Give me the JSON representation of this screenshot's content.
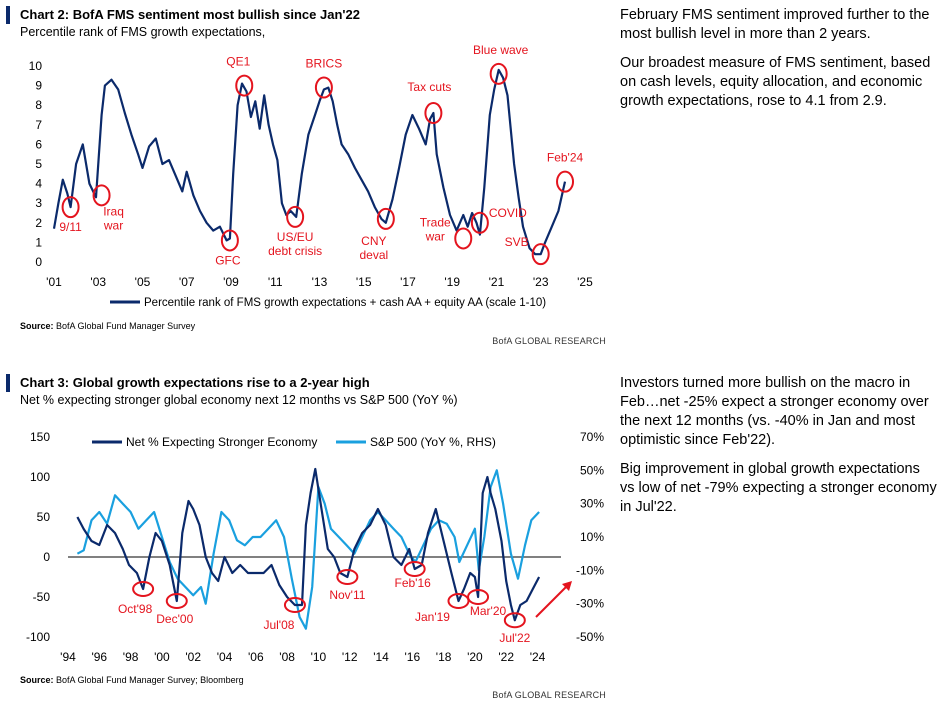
{
  "chart2": {
    "heading": "Chart 2: BofA FMS sentiment most bullish since Jan'22",
    "subtitle": "Percentile rank of FMS growth expectations,",
    "source_label": "Source:",
    "source_text": "BofA Global Fund Manager Survey",
    "brand": "BofA GLOBAL RESEARCH",
    "commentary": [
      "February FMS sentiment improved further to the most bullish level in more than 2 years.",
      "Our broadest measure of FMS sentiment, based on cash levels, equity allocation, and economic growth expectations, rose to 4.1 from 2.9."
    ]
  },
  "chart3": {
    "heading": "Chart 3: Global growth expectations rise to a 2-year high",
    "subtitle": "Net % expecting stronger global economy next 12 months vs S&P 500 (YoY %)",
    "source_label": "Source:",
    "source_text": "BofA Global Fund Manager Survey; Bloomberg",
    "brand": "BofA GLOBAL RESEARCH",
    "commentary": [
      "Investors turned more bullish on the macro in Feb…net -25% expect a stronger economy over the next 12 months (vs. -40% in Jan and most optimistic since Feb'22).",
      "Big improvement in global growth expectations vs low of net -79% expecting a stronger economy in Jul'22."
    ]
  },
  "chart_data": [
    {
      "type": "line",
      "title": "Chart 2: BofA FMS sentiment most bullish since Jan'22",
      "subtitle": "Percentile rank of FMS growth expectations,",
      "xlim": [
        2001,
        2025.5
      ],
      "ylim": [
        0,
        10
      ],
      "x_ticks": [
        "'01",
        "'03",
        "'05",
        "'07",
        "'09",
        "'11",
        "'13",
        "'15",
        "'17",
        "'19",
        "'21",
        "'23",
        "'25"
      ],
      "x_tick_values": [
        2001,
        2003,
        2005,
        2007,
        2009,
        2011,
        2013,
        2015,
        2017,
        2019,
        2021,
        2023,
        2025
      ],
      "y_ticks": [
        0,
        1,
        2,
        3,
        4,
        5,
        6,
        7,
        8,
        9,
        10
      ],
      "legend": "bottom",
      "series": [
        {
          "name": "Percentile rank of FMS growth expectations + cash AA + equity AA (scale 1-10)",
          "color": "#0b2a6b",
          "x": [
            2001.0,
            2001.2,
            2001.4,
            2001.6,
            2001.75,
            2002.0,
            2002.3,
            2002.6,
            2002.9,
            2003.15,
            2003.3,
            2003.6,
            2003.9,
            2004.2,
            2004.5,
            2004.8,
            2005.0,
            2005.3,
            2005.6,
            2005.9,
            2006.2,
            2006.5,
            2006.8,
            2007.0,
            2007.3,
            2007.6,
            2007.9,
            2008.2,
            2008.5,
            2008.8,
            2008.95,
            2009.1,
            2009.3,
            2009.5,
            2009.7,
            2009.9,
            2010.1,
            2010.3,
            2010.5,
            2010.7,
            2010.9,
            2011.1,
            2011.3,
            2011.5,
            2011.7,
            2011.95,
            2012.2,
            2012.5,
            2012.8,
            2013.0,
            2013.2,
            2013.4,
            2013.6,
            2013.8,
            2014.0,
            2014.3,
            2014.6,
            2014.9,
            2015.2,
            2015.5,
            2015.8,
            2016.0,
            2016.3,
            2016.6,
            2016.9,
            2017.2,
            2017.5,
            2017.8,
            2018.0,
            2018.15,
            2018.3,
            2018.6,
            2018.9,
            2019.2,
            2019.5,
            2019.7,
            2019.9,
            2020.1,
            2020.25,
            2020.45,
            2020.7,
            2020.9,
            2021.1,
            2021.3,
            2021.5,
            2021.8,
            2022.0,
            2022.2,
            2022.5,
            2022.75,
            2023.0,
            2023.2,
            2023.5,
            2023.8,
            2024.0,
            2024.1
          ],
          "y": [
            1.7,
            3.0,
            4.2,
            3.5,
            2.8,
            5.0,
            6.0,
            4.0,
            3.3,
            7.5,
            9.0,
            9.3,
            8.8,
            7.6,
            6.5,
            5.5,
            4.8,
            5.9,
            6.3,
            5.0,
            5.2,
            4.4,
            3.6,
            4.6,
            3.4,
            2.6,
            2.0,
            1.6,
            1.8,
            1.1,
            1.2,
            4.5,
            8.0,
            9.1,
            8.7,
            7.4,
            8.2,
            6.8,
            8.5,
            7.0,
            6.0,
            5.2,
            3.0,
            2.4,
            2.6,
            2.3,
            4.5,
            6.5,
            7.5,
            8.2,
            8.8,
            8.9,
            8.2,
            7.0,
            6.0,
            5.5,
            4.8,
            4.2,
            3.6,
            2.8,
            2.2,
            2.0,
            3.2,
            4.8,
            6.5,
            7.5,
            6.8,
            6.0,
            7.3,
            7.6,
            5.5,
            3.8,
            2.4,
            1.6,
            2.4,
            1.8,
            2.5,
            2.0,
            1.4,
            3.8,
            7.5,
            8.8,
            9.8,
            9.4,
            8.5,
            5.0,
            3.3,
            1.8,
            0.7,
            0.4,
            0.4,
            1.0,
            1.8,
            2.6,
            3.6,
            4.1
          ]
        }
      ],
      "annotations": [
        {
          "label": "9/11",
          "x": 2001.75,
          "y": 2.8
        },
        {
          "label": "Iraq war",
          "x": 2003.15,
          "y": 3.4
        },
        {
          "label": "GFC",
          "x": 2008.95,
          "y": 1.1
        },
        {
          "label": "QE1",
          "x": 2009.6,
          "y": 9.0
        },
        {
          "label": "US/EU debt crisis",
          "x": 2011.9,
          "y": 2.3
        },
        {
          "label": "BRICS",
          "x": 2013.2,
          "y": 8.9
        },
        {
          "label": "CNY deval",
          "x": 2016.0,
          "y": 2.2
        },
        {
          "label": "Tax cuts",
          "x": 2018.15,
          "y": 7.6
        },
        {
          "label": "Trade war",
          "x": 2019.5,
          "y": 1.2
        },
        {
          "label": "COVID",
          "x": 2020.25,
          "y": 2.0
        },
        {
          "label": "Blue wave",
          "x": 2021.1,
          "y": 9.6
        },
        {
          "label": "SVB",
          "x": 2023.0,
          "y": 0.4
        },
        {
          "label": "Feb'24",
          "x": 2024.1,
          "y": 4.1
        }
      ]
    },
    {
      "type": "line",
      "title": "Chart 3: Global growth expectations rise to a 2-year high",
      "subtitle": "Net % expecting stronger global economy next 12 months vs S&P 500 (YoY %)",
      "xlim": [
        1994,
        2025.5
      ],
      "ylim": [
        -100,
        150
      ],
      "y2lim": [
        -50,
        70
      ],
      "x_ticks": [
        "'94",
        "'96",
        "'98",
        "'00",
        "'02",
        "'04",
        "'06",
        "'08",
        "'10",
        "'12",
        "'14",
        "'16",
        "'18",
        "'20",
        "'22",
        "'24"
      ],
      "x_tick_values": [
        1994,
        1996,
        1998,
        2000,
        2002,
        2004,
        2006,
        2008,
        2010,
        2012,
        2014,
        2016,
        2018,
        2020,
        2022,
        2024
      ],
      "y_ticks": [
        -100,
        -50,
        0,
        50,
        100,
        150
      ],
      "y2_ticks": [
        "-50%",
        "-30%",
        "-10%",
        "10%",
        "30%",
        "50%",
        "70%"
      ],
      "y2_tick_values": [
        -50,
        -30,
        -10,
        10,
        30,
        50,
        70
      ],
      "legend": "top",
      "series": [
        {
          "name": "Net % Expecting Stronger Economy",
          "axis": "left",
          "color": "#0b2a6b",
          "x": [
            1994.6,
            1995.0,
            1995.5,
            1996.0,
            1996.5,
            1997.0,
            1997.5,
            1997.9,
            1998.4,
            1998.8,
            1999.2,
            1999.6,
            2000.0,
            2000.5,
            2000.95,
            2001.3,
            2001.7,
            2002.0,
            2002.4,
            2002.8,
            2003.2,
            2003.6,
            2004.0,
            2004.5,
            2005.0,
            2005.5,
            2006.0,
            2006.5,
            2007.0,
            2007.5,
            2008.0,
            2008.5,
            2008.95,
            2009.2,
            2009.5,
            2009.8,
            2010.2,
            2010.6,
            2011.0,
            2011.4,
            2011.85,
            2012.3,
            2012.8,
            2013.3,
            2013.8,
            2014.3,
            2014.8,
            2015.3,
            2015.8,
            2016.15,
            2016.6,
            2017.0,
            2017.5,
            2018.0,
            2018.5,
            2018.95,
            2019.3,
            2019.7,
            2020.0,
            2020.2,
            2020.5,
            2020.8,
            2021.0,
            2021.3,
            2021.7,
            2022.0,
            2022.3,
            2022.55,
            2022.9,
            2023.3,
            2023.7,
            2024.1
          ],
          "y": [
            50,
            35,
            20,
            15,
            40,
            30,
            10,
            -10,
            -20,
            -40,
            0,
            30,
            20,
            -10,
            -55,
            30,
            70,
            60,
            40,
            0,
            -20,
            -30,
            0,
            -20,
            -10,
            -20,
            -20,
            -20,
            -10,
            -35,
            -50,
            -60,
            -60,
            40,
            80,
            110,
            60,
            10,
            0,
            -20,
            -25,
            10,
            30,
            40,
            60,
            40,
            0,
            -10,
            10,
            -15,
            -10,
            30,
            60,
            20,
            -20,
            -55,
            -40,
            -20,
            -25,
            -50,
            80,
            100,
            80,
            60,
            20,
            -30,
            -60,
            -79,
            -60,
            -55,
            -40,
            -25
          ]
        },
        {
          "name": "S&P 500 (YoY %, RHS)",
          "axis": "right",
          "color": "#1aa0df",
          "x": [
            1994.6,
            1995.0,
            1995.5,
            1996.0,
            1996.5,
            1997.0,
            1997.5,
            1998.0,
            1998.5,
            1999.0,
            1999.5,
            2000.0,
            2000.5,
            2001.0,
            2001.5,
            2002.0,
            2002.5,
            2002.8,
            2003.3,
            2003.8,
            2004.3,
            2004.8,
            2005.3,
            2005.8,
            2006.3,
            2006.8,
            2007.3,
            2007.8,
            2008.3,
            2008.8,
            2009.2,
            2009.6,
            2010.0,
            2010.4,
            2010.8,
            2011.3,
            2011.8,
            2012.3,
            2012.8,
            2013.3,
            2013.8,
            2014.3,
            2014.8,
            2015.3,
            2015.8,
            2016.2,
            2016.7,
            2017.2,
            2017.7,
            2018.2,
            2018.7,
            2019.0,
            2019.5,
            2020.0,
            2020.25,
            2020.6,
            2021.0,
            2021.4,
            2021.8,
            2022.3,
            2022.75,
            2023.2,
            2023.6,
            2024.1
          ],
          "y": [
            0,
            2,
            20,
            25,
            18,
            35,
            30,
            25,
            15,
            20,
            25,
            10,
            -5,
            -15,
            -20,
            -25,
            -20,
            -30,
            0,
            25,
            20,
            8,
            5,
            10,
            10,
            15,
            20,
            10,
            -15,
            -38,
            -45,
            -20,
            40,
            30,
            15,
            10,
            5,
            0,
            10,
            20,
            25,
            20,
            15,
            10,
            0,
            -5,
            5,
            15,
            20,
            18,
            10,
            -5,
            5,
            15,
            -10,
            10,
            40,
            50,
            30,
            0,
            -15,
            5,
            20,
            25
          ]
        }
      ],
      "annotations": [
        {
          "label": "Oct'98",
          "x": 1998.8,
          "y": -40
        },
        {
          "label": "Dec'00",
          "x": 2000.95,
          "y": -55
        },
        {
          "label": "Jul'08",
          "x": 2008.5,
          "y": -60
        },
        {
          "label": "Nov'11",
          "x": 2011.85,
          "y": -25
        },
        {
          "label": "Feb'16",
          "x": 2016.15,
          "y": -15
        },
        {
          "label": "Jan'19",
          "x": 2018.95,
          "y": -55
        },
        {
          "label": "Mar'20",
          "x": 2020.2,
          "y": -50
        },
        {
          "label": "Jul'22",
          "x": 2022.55,
          "y": -79
        }
      ]
    }
  ]
}
